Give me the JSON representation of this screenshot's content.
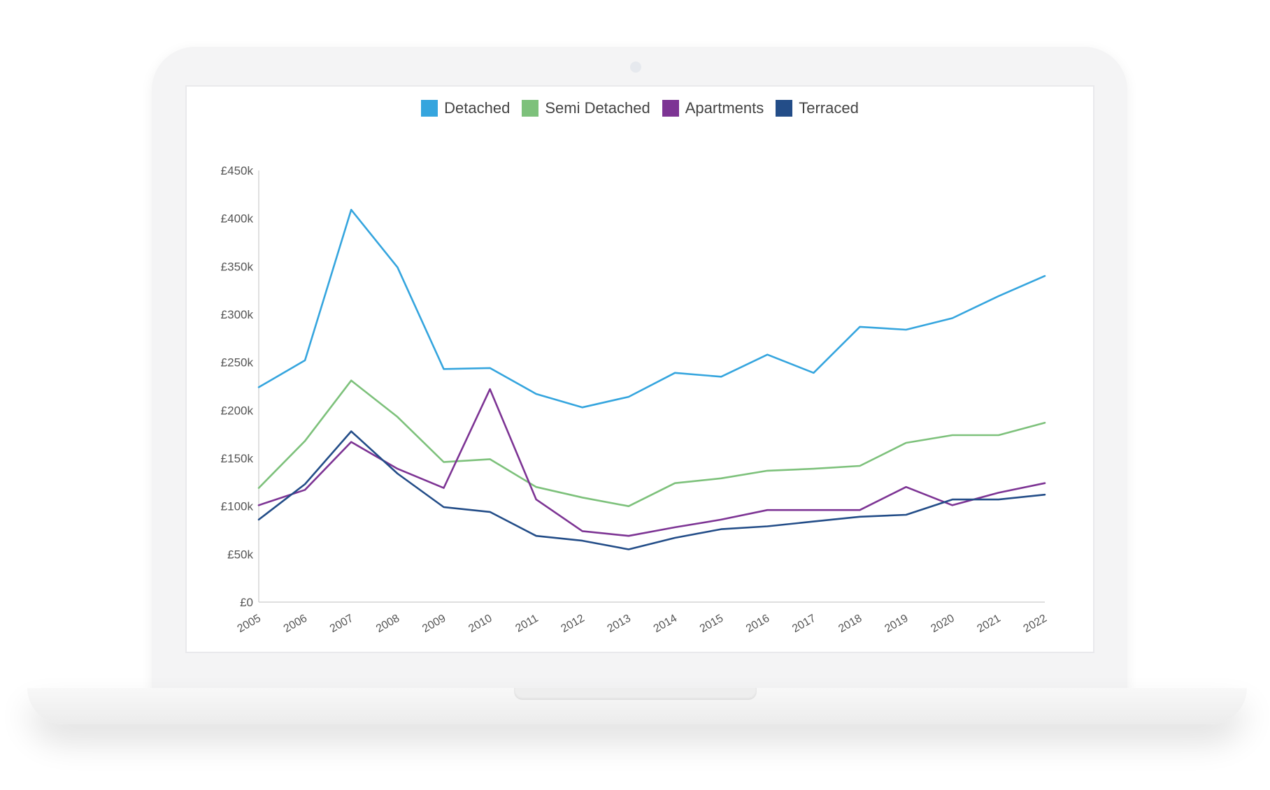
{
  "chart_data": {
    "type": "line",
    "title": "",
    "xlabel": "",
    "ylabel": "",
    "x": [
      "2005",
      "2006",
      "2007",
      "2008",
      "2009",
      "2010",
      "2011",
      "2012",
      "2013",
      "2014",
      "2015",
      "2016",
      "2017",
      "2018",
      "2019",
      "2020",
      "2021",
      "2022"
    ],
    "ylim": [
      0,
      450000
    ],
    "y_ticks": [
      0,
      50000,
      100000,
      150000,
      200000,
      250000,
      300000,
      350000,
      400000,
      450000
    ],
    "y_tick_labels": [
      "£0",
      "£50k",
      "£100k",
      "£150k",
      "£200k",
      "£250k",
      "£300k",
      "£350k",
      "£400k",
      "£450k"
    ],
    "grid": false,
    "legend_position": "top-center",
    "series": [
      {
        "name": "Detached",
        "color": "#35a5de",
        "values": [
          224000,
          252000,
          409000,
          349000,
          243000,
          244000,
          217000,
          203000,
          214000,
          239000,
          235000,
          258000,
          239000,
          287000,
          284000,
          296000,
          319000,
          340000
        ]
      },
      {
        "name": "Semi Detached",
        "color": "#7dc17b",
        "values": [
          119000,
          168000,
          231000,
          193000,
          146000,
          149000,
          120000,
          109000,
          100000,
          124000,
          129000,
          137000,
          139000,
          142000,
          166000,
          174000,
          174000,
          187000
        ]
      },
      {
        "name": "Apartments",
        "color": "#7d3494",
        "values": [
          101000,
          117000,
          167000,
          139000,
          119000,
          222000,
          107000,
          74000,
          69000,
          78000,
          86000,
          96000,
          96000,
          96000,
          120000,
          101000,
          114000,
          124000
        ]
      },
      {
        "name": "Terraced",
        "color": "#234d88",
        "values": [
          86000,
          123000,
          178000,
          134000,
          99000,
          94000,
          69000,
          64000,
          55000,
          67000,
          76000,
          79000,
          84000,
          89000,
          91000,
          107000,
          107000,
          112000
        ]
      }
    ]
  }
}
